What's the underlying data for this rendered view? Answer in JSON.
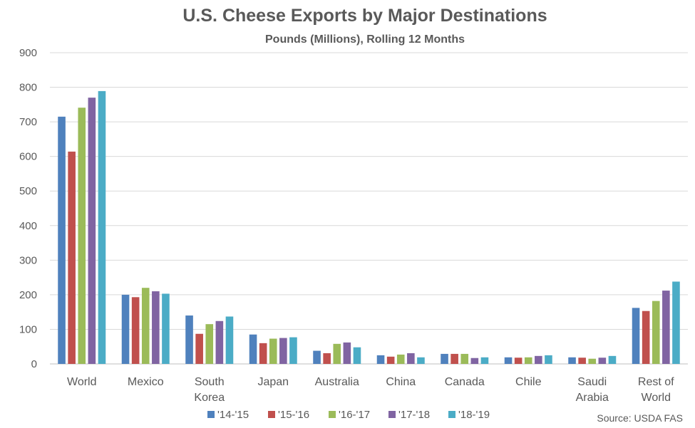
{
  "chart_data": {
    "type": "bar",
    "title": "U.S. Cheese Exports by Major Destinations",
    "subtitle": "Pounds (Millions), Rolling 12 Months",
    "xlabel": "",
    "ylabel": "",
    "ylim": [
      0,
      900
    ],
    "yticks": [
      0,
      100,
      200,
      300,
      400,
      500,
      600,
      700,
      800,
      900
    ],
    "grid": true,
    "legend_position": "bottom",
    "categories": [
      [
        "World"
      ],
      [
        "Mexico"
      ],
      [
        "South",
        "Korea"
      ],
      [
        "Japan"
      ],
      [
        "Australia"
      ],
      [
        "China"
      ],
      [
        "Canada"
      ],
      [
        "Chile"
      ],
      [
        "Saudi",
        "Arabia"
      ],
      [
        "Rest of",
        "World"
      ]
    ],
    "series": [
      {
        "name": "'14-'15",
        "color": "#4F81BD",
        "values": [
          715,
          200,
          140,
          85,
          38,
          25,
          29,
          19,
          19,
          162
        ]
      },
      {
        "name": "'15-'16",
        "color": "#C0504D",
        "values": [
          614,
          193,
          87,
          60,
          31,
          21,
          29,
          18,
          18,
          153
        ]
      },
      {
        "name": "'16-'17",
        "color": "#9BBB59",
        "values": [
          741,
          220,
          115,
          73,
          58,
          27,
          29,
          19,
          15,
          182
        ]
      },
      {
        "name": "'17-'18",
        "color": "#8064A2",
        "values": [
          770,
          210,
          124,
          75,
          62,
          31,
          17,
          23,
          18,
          212
        ]
      },
      {
        "name": "'18-'19",
        "color": "#4BACC6",
        "values": [
          789,
          203,
          137,
          77,
          48,
          19,
          19,
          25,
          23,
          238
        ]
      }
    ],
    "source": "Source: USDA FAS"
  }
}
